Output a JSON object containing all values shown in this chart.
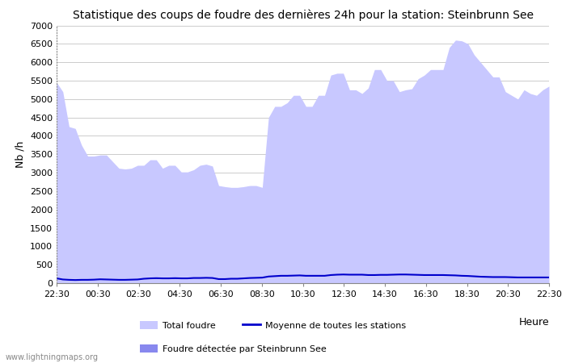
{
  "title": "Statistique des coups de foudre des dernières 24h pour la station: Steinbrunn See",
  "ylabel": "Nb /h",
  "xlabel": "Heure",
  "watermark": "www.lightningmaps.org",
  "x_ticks": [
    "22:30",
    "00:30",
    "02:30",
    "04:30",
    "06:30",
    "08:30",
    "10:30",
    "12:30",
    "14:30",
    "16:30",
    "18:30",
    "20:30",
    "22:30"
  ],
  "ylim": [
    0,
    7000
  ],
  "yticks": [
    0,
    500,
    1000,
    1500,
    2000,
    2500,
    3000,
    3500,
    4000,
    4500,
    5000,
    5500,
    6000,
    6500,
    7000
  ],
  "total_foudre_color": "#c8c8ff",
  "station_foudre_color": "#8888ee",
  "moyenne_color": "#0000cc",
  "background_color": "#ffffff",
  "title_fontsize": 10,
  "legend_total_label": "Total foudre",
  "legend_station_label": "Foudre détectée par Steinbrunn See",
  "legend_moyenne_label": "Moyenne de toutes les stations",
  "total_foudre_y": [
    5450,
    5200,
    4250,
    4200,
    3750,
    3450,
    3450,
    3480,
    3480,
    3300,
    3120,
    3100,
    3120,
    3200,
    3200,
    3350,
    3350,
    3120,
    3200,
    3200,
    3020,
    3020,
    3080,
    3200,
    3230,
    3180,
    2650,
    2620,
    2600,
    2600,
    2620,
    2650,
    2650,
    2600,
    4500,
    4800,
    4800,
    4900,
    5100,
    5100,
    4800,
    4800,
    5100,
    5100,
    5650,
    5700,
    5700,
    5250,
    5250,
    5150,
    5300,
    5800,
    5800,
    5500,
    5500,
    5200,
    5250,
    5280,
    5550,
    5650,
    5800,
    5800,
    5800,
    6400,
    6600,
    6580,
    6500,
    6200,
    6000,
    5800,
    5600,
    5600,
    5200,
    5100,
    5000,
    5250,
    5150,
    5100,
    5250,
    5350
  ],
  "station_foudre_y": [
    0,
    0,
    0,
    0,
    0,
    0,
    0,
    0,
    0,
    0,
    0,
    0,
    0,
    0,
    0,
    0,
    0,
    0,
    0,
    0,
    0,
    0,
    0,
    0,
    0,
    0,
    0,
    0,
    0,
    0,
    0,
    0,
    0,
    0,
    0,
    0,
    0,
    0,
    0,
    0,
    0,
    0,
    0,
    0,
    0,
    0,
    0,
    0,
    0,
    0,
    0,
    0,
    0,
    0,
    0,
    0,
    0,
    0,
    0,
    0,
    0,
    0,
    0,
    0,
    0,
    0,
    0,
    0,
    0,
    0,
    0,
    0,
    0,
    0,
    0,
    0,
    0,
    0,
    0,
    0
  ],
  "moyenne_y": [
    130,
    100,
    90,
    85,
    90,
    90,
    95,
    105,
    100,
    95,
    90,
    90,
    95,
    100,
    120,
    130,
    135,
    130,
    130,
    135,
    130,
    130,
    140,
    140,
    145,
    140,
    110,
    110,
    120,
    120,
    130,
    140,
    145,
    150,
    180,
    190,
    200,
    200,
    205,
    210,
    200,
    200,
    200,
    200,
    220,
    230,
    235,
    230,
    230,
    230,
    220,
    220,
    225,
    225,
    230,
    235,
    235,
    230,
    225,
    220,
    220,
    220,
    220,
    215,
    210,
    200,
    195,
    185,
    175,
    170,
    165,
    165,
    165,
    160,
    155,
    155,
    155,
    155,
    155,
    155
  ]
}
